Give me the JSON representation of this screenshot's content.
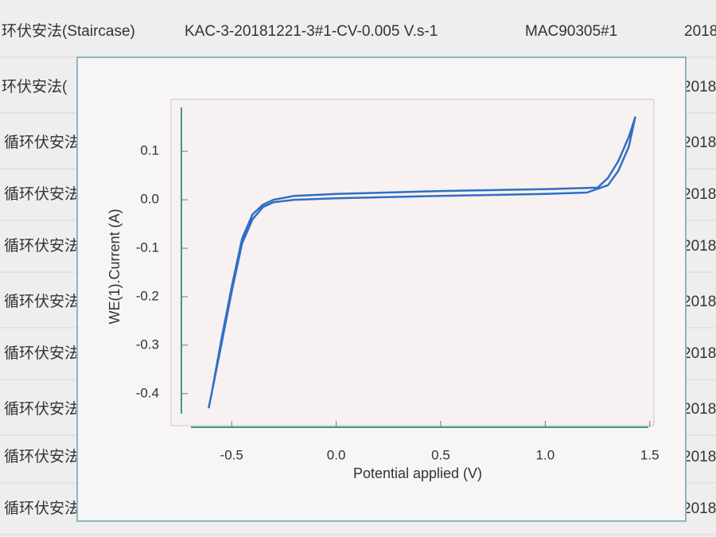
{
  "table": {
    "rows": [
      [
        "环伏安法(Staircase)",
        "KAC-3-20181221-3#1-CV-0.005 V.s-1",
        "MAC90305#1",
        "2018"
      ],
      [
        "环伏安法(",
        "2018"
      ],
      [
        "循环伏安法(",
        "2018"
      ],
      [
        "循环伏安法(",
        "2018"
      ],
      [
        "循环伏安法(",
        "2018"
      ],
      [
        "循环伏安法(",
        "2018/"
      ],
      [
        "循环伏安法(",
        "2018/"
      ],
      [
        "循环伏安法(",
        "2018/"
      ],
      [
        "循环伏安法(",
        "2018/"
      ],
      [
        "循环伏安法(",
        "2018/"
      ]
    ]
  },
  "chart_data": {
    "type": "line",
    "x_label": "Potential applied (V)",
    "y_label": "WE(1).Current (A)",
    "x": [
      -0.61,
      -0.55,
      -0.5,
      -0.45,
      -0.4,
      -0.35,
      -0.3,
      -0.2,
      0.0,
      0.5,
      1.0,
      1.2,
      1.3,
      1.35,
      1.4,
      1.43,
      1.4,
      1.35,
      1.3,
      1.25,
      1.0,
      0.5,
      0.0,
      -0.2,
      -0.3,
      -0.35,
      -0.4,
      -0.45,
      -0.5,
      -0.55,
      -0.6
    ],
    "series": [
      {
        "color": "#2f6fc4",
        "values": [
          -0.43,
          -0.3,
          -0.19,
          -0.09,
          -0.04,
          -0.015,
          -0.005,
          0.0,
          0.003,
          0.008,
          0.012,
          0.015,
          0.03,
          0.06,
          0.11,
          0.17,
          0.13,
          0.08,
          0.045,
          0.025,
          0.022,
          0.018,
          0.012,
          0.008,
          0.0,
          -0.01,
          -0.03,
          -0.08,
          -0.18,
          -0.29,
          -0.41
        ]
      }
    ],
    "xlim": [
      -0.79,
      1.52
    ],
    "ylim": [
      -0.466,
      0.207
    ],
    "xticks": [
      -0.5,
      {
        "value": 0,
        "label": "0.0"
      },
      0.5,
      {
        "value": 1,
        "label": "1.0"
      },
      1.5
    ],
    "yticks": [
      0.1,
      {
        "value": 0,
        "label": "0.0"
      },
      -0.1,
      -0.2,
      -0.3,
      -0.4
    ],
    "grid": false
  }
}
